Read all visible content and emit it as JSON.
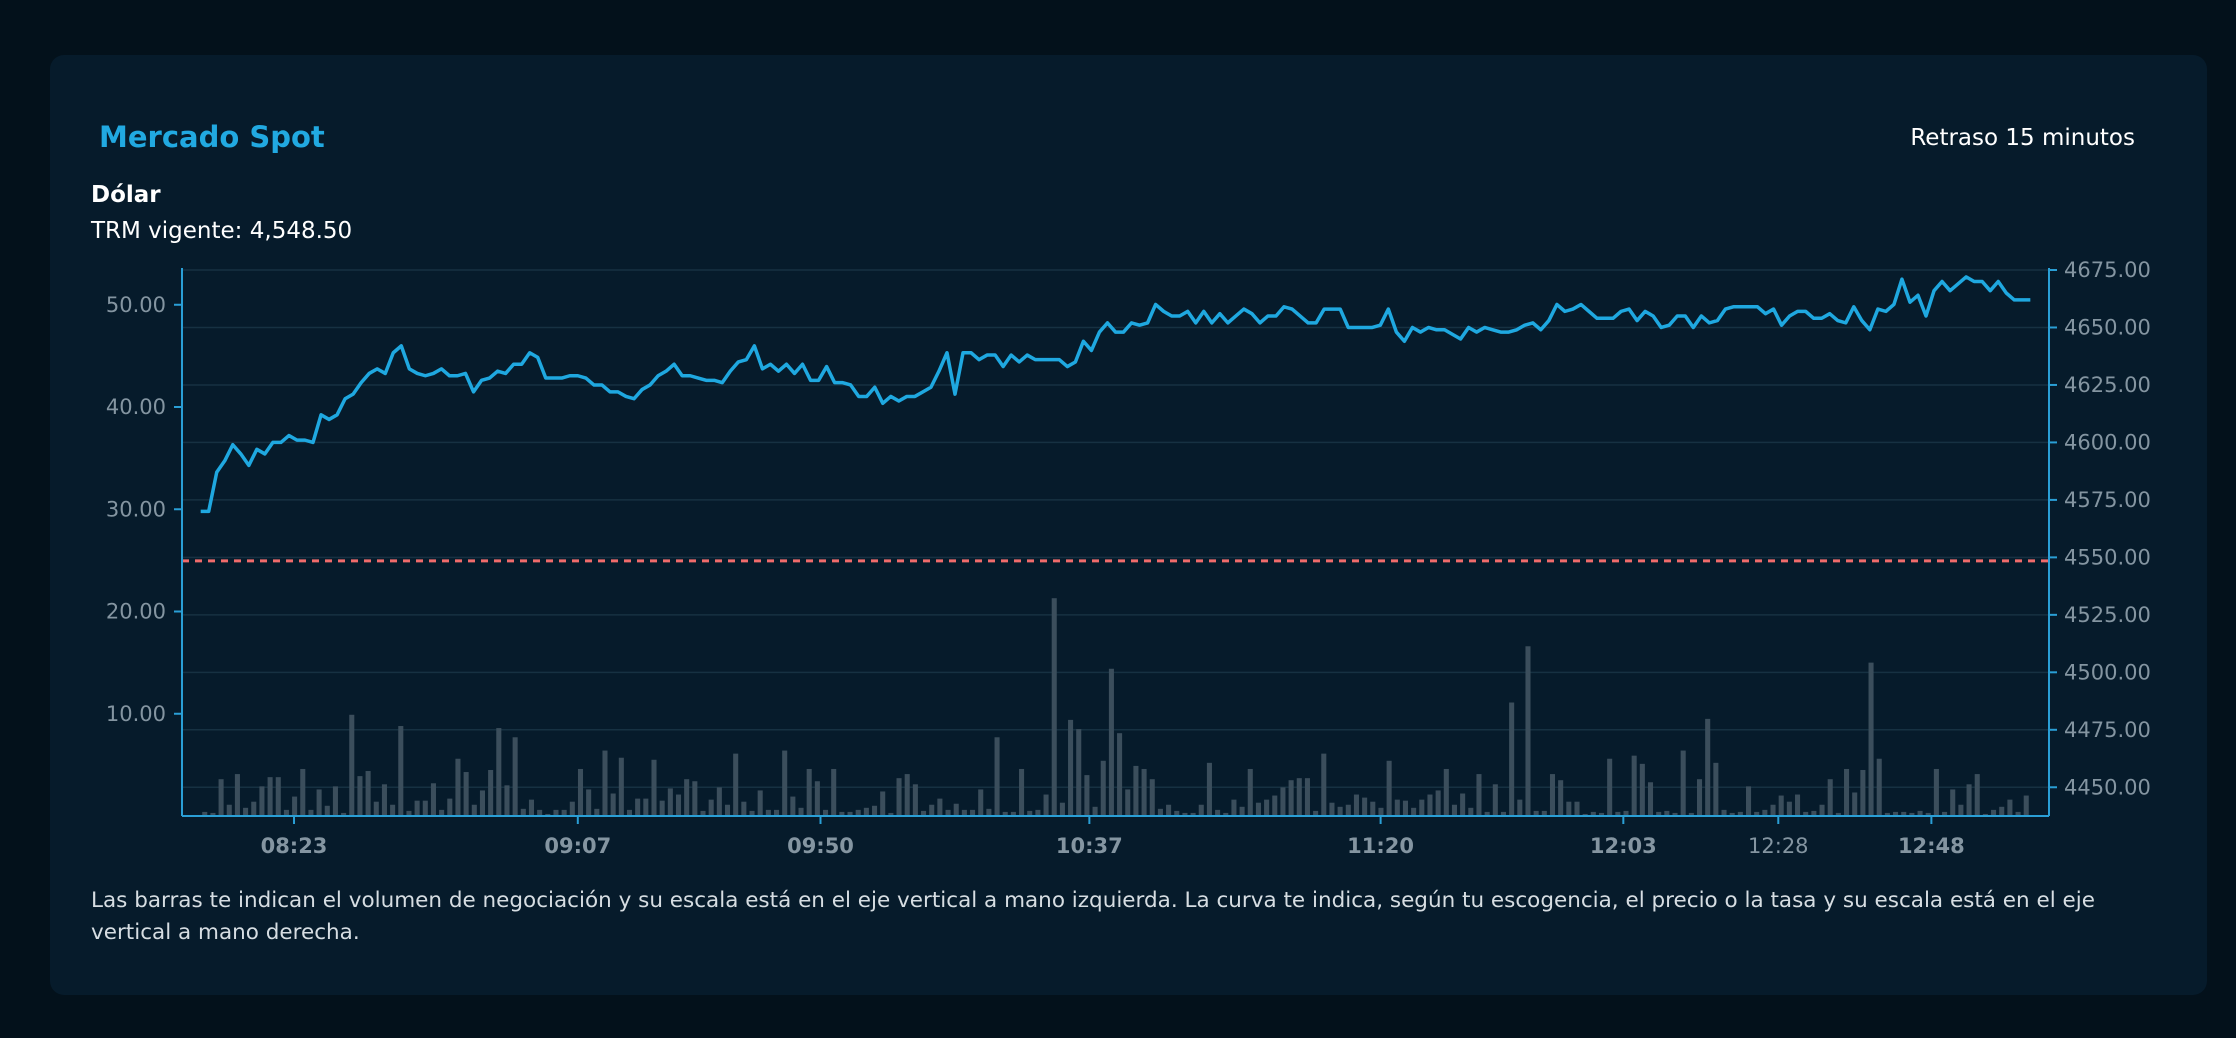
{
  "panel": {
    "title": "Mercado Spot",
    "delay_notice": "Retraso 15 minutos",
    "asset": "Dólar",
    "trm_label": "TRM vigente:",
    "trm_value": "4,548.50",
    "footnote": "Las barras te indican el volumen de negociación y su escala está en el eje vertical a mano izquierda. La curva te indica, según tu escogencia, el precio o la tasa y su escala está en el eje vertical a mano derecha."
  },
  "colors": {
    "background": "#03111b",
    "card": "#061b2b",
    "accent": "#21a9e1",
    "line": "#1fa8e0",
    "bars": "#3b4e5c",
    "reference_line": "#f06b6b",
    "grid": "#163142",
    "axis": "#2a9fd6",
    "tick_text": "#8495a1"
  },
  "chart_data": {
    "type": "bar+line",
    "grid": true,
    "x_ticks": [
      {
        "label": "08:23",
        "x": 0.06
      },
      {
        "label": "09:07",
        "x": 0.212
      },
      {
        "label": "09:50",
        "x": 0.342
      },
      {
        "label": "10:37",
        "x": 0.486
      },
      {
        "label": "11:20",
        "x": 0.642
      },
      {
        "label": "12:03",
        "x": 0.772
      },
      {
        "label": "12:28",
        "x": 0.855,
        "bold": false
      },
      {
        "label": "12:48",
        "x": 0.937
      }
    ],
    "y_left": {
      "ticks": [
        "10.00",
        "20.00",
        "30.00",
        "40.00",
        "50.00"
      ],
      "tick_values": [
        10,
        20,
        30,
        40,
        50
      ],
      "range": [
        0,
        53.4
      ]
    },
    "y_right": {
      "ticks": [
        "4450.00",
        "4475.00",
        "4500.00",
        "4525.00",
        "4550.00",
        "4575.00",
        "4600.00",
        "4625.00",
        "4650.00",
        "4675.00"
      ],
      "tick_values": [
        4450,
        4475,
        4500,
        4525,
        4550,
        4575,
        4600,
        4625,
        4650,
        4675
      ],
      "range": [
        4437.5,
        4675
      ]
    },
    "reference_line": {
      "series_axis": "right",
      "value": 4548.5
    },
    "series": [
      {
        "kind": "bars",
        "axis": "left",
        "x_range": [
          0.01,
          0.99
        ],
        "values": [
          0.4,
          0.3,
          3.6,
          1.1,
          4.1,
          0.8,
          1.4,
          2.9,
          3.8,
          3.8,
          0.6,
          1.9,
          4.6,
          0.6,
          2.6,
          1.0,
          2.9,
          0.3,
          9.9,
          3.9,
          4.4,
          1.4,
          3.1,
          1.1,
          8.8,
          0.5,
          1.5,
          1.5,
          3.2,
          0.6,
          1.7,
          5.6,
          4.3,
          1.1,
          2.5,
          4.5,
          8.6,
          3.0,
          7.7,
          0.7,
          1.6,
          0.6,
          0.2,
          0.6,
          0.6,
          1.4,
          4.6,
          2.6,
          0.7,
          6.4,
          2.2,
          5.7,
          0.6,
          1.7,
          1.7,
          5.5,
          1.5,
          2.7,
          2.1,
          3.6,
          3.4,
          0.5,
          1.6,
          2.8,
          1.1,
          6.1,
          1.4,
          0.5,
          2.5,
          0.6,
          0.6,
          6.4,
          1.9,
          0.8,
          4.6,
          3.4,
          0.6,
          4.6,
          0.4,
          0.4,
          0.6,
          0.8,
          1.0,
          2.4,
          0.3,
          3.7,
          4.1,
          3.1,
          0.5,
          1.1,
          1.7,
          0.6,
          1.2,
          0.6,
          0.6,
          2.6,
          0.7,
          7.7,
          0.4,
          0.4,
          4.6,
          0.5,
          0.6,
          2.1,
          21.3,
          1.3,
          9.4,
          8.5,
          4.0,
          0.9,
          5.4,
          14.4,
          8.1,
          2.6,
          4.9,
          4.6,
          3.6,
          0.7,
          1.1,
          0.5,
          0.3,
          0.3,
          1.1,
          5.2,
          0.6,
          0.3,
          1.6,
          0.9,
          4.6,
          1.3,
          1.6,
          2.0,
          2.8,
          3.5,
          3.7,
          3.7,
          0.5,
          6.1,
          1.3,
          0.9,
          1.1,
          2.1,
          1.8,
          1.4,
          0.8,
          5.4,
          1.6,
          1.5,
          0.8,
          1.6,
          2.1,
          2.5,
          4.6,
          1.1,
          2.2,
          0.8,
          4.1,
          0.4,
          3.1,
          0.4,
          11.1,
          1.6,
          16.6,
          0.5,
          0.5,
          4.1,
          3.5,
          1.4,
          1.4,
          0.2,
          0.4,
          0.3,
          5.6,
          0.4,
          0.5,
          5.9,
          5.1,
          3.3,
          0.4,
          0.5,
          0.3,
          6.4,
          0.3,
          3.6,
          9.5,
          5.2,
          0.6,
          0.3,
          0.4,
          2.9,
          0.4,
          0.6,
          1.1,
          2.0,
          1.4,
          2.1,
          0.4,
          0.5,
          1.1,
          3.6,
          0.3,
          4.6,
          2.3,
          4.5,
          15.0,
          5.6,
          0.3,
          0.4,
          0.4,
          0.3,
          0.5,
          0.3,
          4.6,
          0.4,
          2.6,
          1.1,
          3.1,
          4.1,
          0.2,
          0.6,
          0.9,
          1.6,
          0.4,
          2.0
        ]
      },
      {
        "kind": "line",
        "axis": "right",
        "x_range": [
          0.01,
          0.99
        ],
        "values": [
          4570,
          4570,
          4587,
          4592,
          4599,
          4595,
          4590,
          4597,
          4595,
          4600,
          4600,
          4603,
          4601,
          4601,
          4600,
          4612,
          4610,
          4612,
          4619,
          4621,
          4626,
          4630,
          4632,
          4630,
          4639,
          4642,
          4632,
          4630,
          4629,
          4630,
          4632,
          4629,
          4629,
          4630,
          4622,
          4627,
          4628,
          4631,
          4630,
          4634,
          4634,
          4639,
          4637,
          4628,
          4628,
          4628,
          4629,
          4629,
          4628,
          4625,
          4625,
          4622,
          4622,
          4620,
          4619,
          4623,
          4625,
          4629,
          4631,
          4634,
          4629,
          4629,
          4628,
          4627,
          4627,
          4626,
          4631,
          4635,
          4636,
          4642,
          4632,
          4634,
          4631,
          4634,
          4630,
          4634,
          4627,
          4627,
          4633,
          4626,
          4626,
          4625,
          4620,
          4620,
          4624,
          4617,
          4620,
          4618,
          4620,
          4620,
          4622,
          4624,
          4631,
          4639,
          4621,
          4639,
          4639,
          4636,
          4638,
          4638,
          4633,
          4638,
          4635,
          4638,
          4636,
          4636,
          4636,
          4636,
          4633,
          4635,
          4644,
          4640,
          4648,
          4652,
          4648,
          4648,
          4652,
          4651,
          4652,
          4660,
          4657,
          4655,
          4655,
          4657,
          4652,
          4657,
          4652,
          4656,
          4652,
          4655,
          4658,
          4656,
          4652,
          4655,
          4655,
          4659,
          4658,
          4655,
          4652,
          4652,
          4658,
          4658,
          4658,
          4650,
          4650,
          4650,
          4650,
          4651,
          4658,
          4648,
          4644,
          4650,
          4648,
          4650,
          4649,
          4649,
          4647,
          4645,
          4650,
          4648,
          4650,
          4649,
          4648,
          4648,
          4649,
          4651,
          4652,
          4649,
          4653,
          4660,
          4657,
          4658,
          4660,
          4657,
          4654,
          4654,
          4654,
          4657,
          4658,
          4653,
          4657,
          4655,
          4650,
          4651,
          4655,
          4655,
          4650,
          4655,
          4652,
          4653,
          4658,
          4659,
          4659,
          4659,
          4659,
          4656,
          4658,
          4651,
          4655,
          4657,
          4657,
          4654,
          4654,
          4656,
          4653,
          4652,
          4659,
          4653,
          4649,
          4658,
          4657,
          4660,
          4671,
          4661,
          4664,
          4655,
          4666,
          4670,
          4666,
          4669,
          4672,
          4670,
          4670,
          4666,
          4670,
          4665,
          4662,
          4662,
          4662
        ]
      }
    ]
  }
}
